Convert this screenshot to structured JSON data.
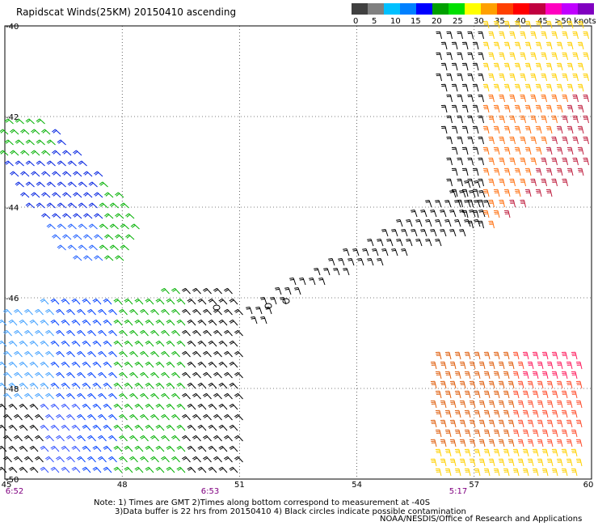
{
  "title": "Rapidscat Winds(25KM) 20150410 ascending",
  "legend": {
    "labels": [
      "0",
      "5",
      "10",
      "15",
      "20",
      "25",
      "30",
      "35",
      "40",
      "45",
      ">50 knots"
    ],
    "colors": [
      "#404040",
      "#808080",
      "#00c0ff",
      "#0080ff",
      "#0000ff",
      "#00a000",
      "#00e000",
      "#ffff00",
      "#ffa000",
      "#ff4000",
      "#ff0000",
      "#c00040",
      "#ff00c0",
      "#c000ff",
      "#8000c0"
    ]
  },
  "map": {
    "lat_labels": [
      "-40",
      "-42",
      "-44",
      "-46",
      "-48",
      "-50"
    ],
    "lon_labels": [
      "45",
      "48",
      "51",
      "54",
      "57",
      "60"
    ],
    "time_labels": [
      "6:52",
      "6:53",
      "5:17"
    ],
    "time_color": "#800080"
  },
  "notes": {
    "line1": "Note: 1) Times are GMT 2)Times along bottom correspond to measurement at -40S",
    "line2": "3)Data buffer is 22 hrs from 20150410 4) Black circles indicate possible contamination",
    "org": "NOAA/NESDIS/Office of Research and Applications"
  }
}
